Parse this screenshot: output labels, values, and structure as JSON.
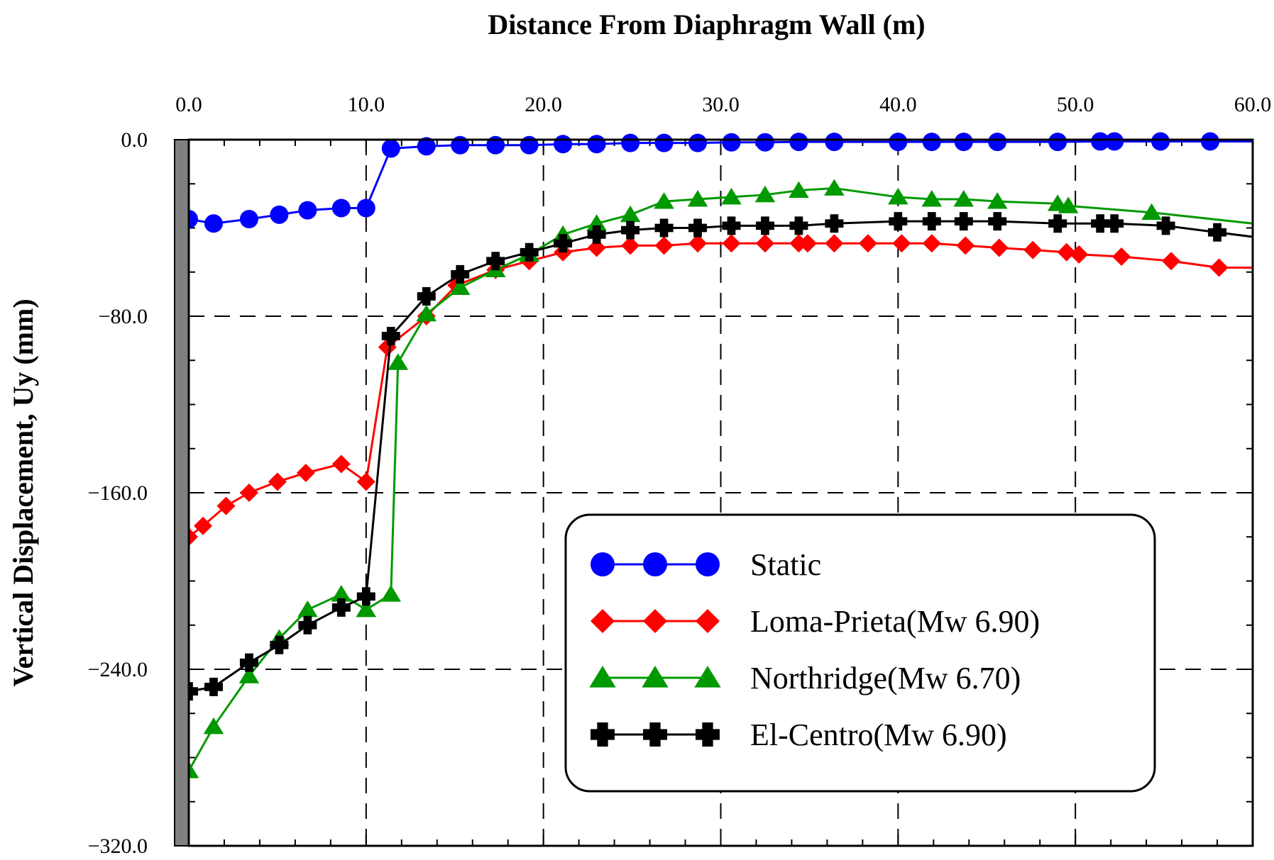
{
  "chart_data": {
    "type": "line",
    "title": "",
    "xlabel": "Distance From Diaphragm Wall (m)",
    "ylabel": "Vertical Displacement, Uy (mm)",
    "xlim": [
      0,
      60
    ],
    "ylim": [
      -320,
      0
    ],
    "x_ticks": [
      0,
      10,
      20,
      30,
      40,
      50,
      60
    ],
    "y_ticks": [
      0,
      -80,
      -160,
      -240,
      -320
    ],
    "x_tick_labels": [
      "0.0",
      "10.0",
      "20.0",
      "30.0",
      "40.0",
      "50.0",
      "60.0"
    ],
    "y_tick_labels": [
      "0.0",
      "−80.0",
      "−160.0",
      "−240.0",
      "−320.0"
    ],
    "grid": "dashed at major ticks",
    "x_axis_position": "top",
    "legend_position": "bottom-right",
    "series": [
      {
        "name": "Static",
        "color": "#0000ff",
        "marker": "circle",
        "x": [
          0,
          1.4,
          3.4,
          5.1,
          6.7,
          8.6,
          10,
          11.4,
          13.4,
          15.3,
          17.3,
          19.2,
          21.1,
          23.0,
          24.9,
          26.8,
          28.7,
          30.6,
          32.5,
          34.4,
          36.4,
          40.0,
          41.9,
          43.7,
          45.6,
          49.0,
          51.4,
          52.2,
          54.8,
          57.6,
          60
        ],
        "y": [
          -36,
          -38,
          -36,
          -34,
          -32,
          -31,
          -31,
          -4,
          -3,
          -2.5,
          -2.5,
          -2.5,
          -2,
          -2,
          -1.5,
          -1.5,
          -1.5,
          -1.2,
          -1.2,
          -1,
          -1,
          -1,
          -1,
          -1,
          -1,
          -1,
          -0.8,
          -0.8,
          -0.8,
          -0.8,
          -0.8
        ]
      },
      {
        "name": "Loma-Prieta(Mw 6.90)",
        "color": "#ff0000",
        "marker": "diamond",
        "x": [
          0,
          0.8,
          2.1,
          3.4,
          5.0,
          6.6,
          8.6,
          10,
          11.2,
          13.4,
          15.1,
          17.3,
          19.2,
          21.1,
          23.0,
          24.9,
          26.8,
          28.7,
          30.6,
          32.5,
          34.4,
          34.9,
          36.4,
          38.3,
          40.2,
          41.9,
          43.8,
          45.7,
          47.6,
          49.5,
          50.2,
          52.6,
          55.4,
          58.1,
          60
        ],
        "y": [
          -180,
          -175,
          -166,
          -160,
          -155,
          -151,
          -147,
          -155,
          -94,
          -80,
          -66,
          -59,
          -55,
          -51,
          -49,
          -48,
          -48,
          -47,
          -47,
          -47,
          -47,
          -47,
          -47,
          -47,
          -47,
          -47,
          -48,
          -49,
          -50,
          -51,
          -52,
          -53,
          -55,
          -58,
          -58
        ]
      },
      {
        "name": "Northridge(Mw 6.70)",
        "color": "#009900",
        "marker": "triangle",
        "x": [
          0,
          1.4,
          3.4,
          5.1,
          6.7,
          8.6,
          10,
          11.4,
          11.8,
          13.4,
          15.3,
          17.3,
          19.2,
          21.1,
          23.0,
          24.9,
          26.8,
          28.7,
          30.6,
          32.5,
          34.4,
          36.4,
          40.0,
          41.9,
          43.7,
          45.6,
          49.0,
          49.6,
          54.3,
          60
        ],
        "y": [
          -286,
          -266,
          -243,
          -226,
          -213,
          -206,
          -213,
          -206,
          -101,
          -79,
          -67,
          -59,
          -52,
          -43,
          -38,
          -34,
          -28,
          -27,
          -26,
          -25,
          -23,
          -22,
          -26,
          -27,
          -27,
          -28,
          -29,
          -30,
          -33,
          -38
        ]
      },
      {
        "name": "El-Centro(Mw 6.90)",
        "color": "#000000",
        "marker": "plus",
        "x": [
          0,
          1.4,
          3.4,
          5.1,
          6.7,
          8.6,
          10,
          11.4,
          13.4,
          15.3,
          17.3,
          19.2,
          21.1,
          23.0,
          24.9,
          26.8,
          28.7,
          30.6,
          32.5,
          34.4,
          36.4,
          40.0,
          41.9,
          43.7,
          45.6,
          49.0,
          51.4,
          52.2,
          55.1,
          58.0,
          60
        ],
        "y": [
          -250,
          -248,
          -237,
          -229,
          -220,
          -212,
          -207,
          -89,
          -71,
          -61,
          -55,
          -51,
          -47,
          -43,
          -41,
          -40,
          -40,
          -39,
          -39,
          -39,
          -38,
          -37,
          -37,
          -37,
          -37,
          -38,
          -38,
          -38,
          -39,
          -42,
          -44
        ]
      }
    ]
  }
}
